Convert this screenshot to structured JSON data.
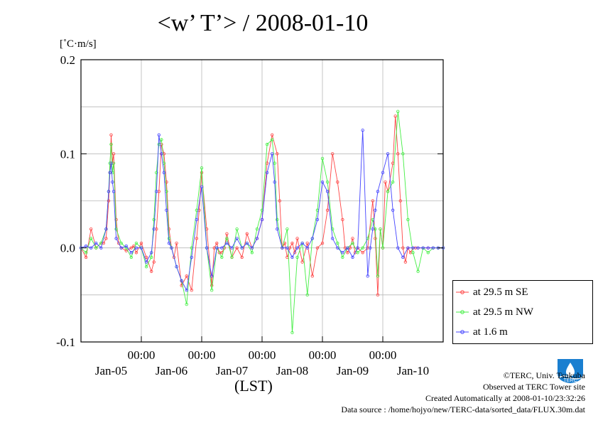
{
  "header": {
    "title": "<w’ T’> / 2008-01-10",
    "unit": "[˚C·m/s]",
    "xlabel": "(LST)"
  },
  "legend": [
    {
      "label": "at 29.5 m SE",
      "color": "#ff4444"
    },
    {
      "label": "at 29.5 m NW",
      "color": "#44ee44"
    },
    {
      "label": "at 1.6 m",
      "color": "#4444ff"
    }
  ],
  "credits": {
    "line1": "©TERC, Univ. Tsukuba",
    "line2": "Observed at TERC Tower site",
    "line3": "Created Automatically at 2008-01-10/23:32:26",
    "line4": "Data source : /home/hojyo/new/TERC-data/sorted_data/FLUX.30m.dat",
    "logo_text": "TERC"
  },
  "chart_data": {
    "type": "line",
    "ylim": [
      -0.1,
      0.2
    ],
    "yticks": [
      {
        "v": 0.2,
        "label": "0.2"
      },
      {
        "v": 0.1,
        "label": "0.1"
      },
      {
        "v": 0.0,
        "label": "0.0"
      },
      {
        "v": -0.1,
        "label": "-0.1"
      }
    ],
    "xlim": [
      0,
      144
    ],
    "xticks": [
      {
        "h": 24,
        "time": "00:00"
      },
      {
        "h": 48,
        "time": "00:00"
      },
      {
        "h": 72,
        "time": "00:00"
      },
      {
        "h": 96,
        "time": "00:00"
      },
      {
        "h": 120,
        "time": "00:00"
      }
    ],
    "dates": [
      {
        "h": 12,
        "label": "Jan-05"
      },
      {
        "h": 36,
        "label": "Jan-06"
      },
      {
        "h": 60,
        "label": "Jan-07"
      },
      {
        "h": 84,
        "label": "Jan-08"
      },
      {
        "h": 108,
        "label": "Jan-09"
      },
      {
        "h": 132,
        "label": "Jan-10"
      }
    ],
    "series": [
      {
        "name": "at 29.5 m SE",
        "color": "#ff4444",
        "x": [
          0,
          2,
          4,
          6,
          8,
          9,
          10,
          11,
          11.5,
          12,
          12.5,
          13,
          14,
          15,
          16,
          18,
          20,
          21,
          22,
          24,
          26,
          28,
          29,
          30,
          31,
          32,
          33,
          34,
          35,
          36,
          37,
          38,
          40,
          42,
          44,
          46,
          47,
          48,
          50,
          52,
          53,
          54,
          55,
          56,
          57,
          58,
          60,
          62,
          64,
          66,
          68,
          70,
          72,
          74,
          76,
          78,
          79,
          80,
          81,
          82,
          83,
          84,
          85,
          86,
          88,
          90,
          92,
          94,
          96,
          98,
          100,
          102,
          104,
          105,
          106,
          107,
          108,
          109,
          110,
          112,
          114,
          116,
          117,
          118,
          119,
          120,
          121,
          122,
          124,
          125,
          126,
          127,
          128,
          129,
          130,
          131,
          132,
          133,
          134,
          136,
          138,
          140,
          142,
          144
        ],
        "y": [
          0.0,
          -0.01,
          0.02,
          0.0,
          0.005,
          0.005,
          0.01,
          0.05,
          0.08,
          0.12,
          0.09,
          0.1,
          0.03,
          0.005,
          0.0,
          -0.003,
          0.0,
          0.002,
          -0.005,
          0.005,
          -0.01,
          -0.025,
          -0.015,
          0.02,
          0.06,
          0.11,
          0.1,
          0.07,
          0.02,
          0.0,
          -0.01,
          0.005,
          -0.04,
          -0.03,
          -0.045,
          0.01,
          0.04,
          0.08,
          0.02,
          -0.04,
          0.0,
          0.005,
          -0.005,
          -0.005,
          0.0,
          0.015,
          -0.01,
          0.0,
          -0.01,
          0.015,
          0.0,
          0.01,
          0.03,
          0.09,
          0.12,
          0.1,
          0.05,
          0.0,
          0.005,
          -0.01,
          0.0,
          0.005,
          -0.005,
          0.01,
          -0.015,
          0.005,
          -0.03,
          0.0,
          0.005,
          0.04,
          0.1,
          0.07,
          0.03,
          0.0,
          -0.005,
          0.0,
          0.01,
          -0.005,
          0.0,
          -0.005,
          0.0,
          0.05,
          0.01,
          -0.05,
          0.02,
          0.0,
          0.07,
          0.06,
          0.09,
          0.14,
          0.1,
          0.05,
          0.0,
          -0.015,
          0.0,
          -0.005,
          0.0,
          0.0,
          0.0,
          0.0,
          0.0,
          0.0,
          0.0,
          0.0
        ]
      },
      {
        "name": "at 29.5 m NW",
        "color": "#44ee44",
        "x": [
          0,
          2,
          4,
          6,
          8,
          10,
          11,
          11.5,
          12,
          12.5,
          13,
          14,
          16,
          18,
          20,
          22,
          24,
          26,
          28,
          29,
          30,
          31,
          32,
          33,
          34,
          35,
          36,
          38,
          40,
          42,
          44,
          46,
          48,
          50,
          52,
          54,
          56,
          58,
          60,
          62,
          64,
          66,
          68,
          70,
          72,
          74,
          76,
          77,
          78,
          80,
          82,
          84,
          86,
          88,
          90,
          92,
          94,
          96,
          98,
          100,
          102,
          104,
          106,
          108,
          110,
          112,
          114,
          116,
          117,
          118,
          119,
          120,
          122,
          124,
          126,
          128,
          130,
          132,
          134,
          136,
          138,
          140,
          142,
          144
        ],
        "y": [
          0.0,
          -0.005,
          0.01,
          0.0,
          0.005,
          0.02,
          0.06,
          0.09,
          0.11,
          0.08,
          0.09,
          0.02,
          0.005,
          0.0,
          -0.01,
          0.005,
          0.0,
          -0.02,
          -0.01,
          0.03,
          0.08,
          0.11,
          0.115,
          0.09,
          0.06,
          0.01,
          0.0,
          -0.02,
          -0.035,
          -0.06,
          0.0,
          0.04,
          0.085,
          0.0,
          -0.045,
          0.0,
          -0.01,
          0.01,
          -0.01,
          0.02,
          0.0,
          0.005,
          -0.005,
          0.02,
          0.04,
          0.11,
          0.115,
          0.09,
          0.03,
          0.0,
          0.02,
          -0.09,
          -0.01,
          0.005,
          -0.05,
          0.01,
          0.04,
          0.095,
          0.07,
          0.02,
          0.005,
          -0.01,
          0.0,
          0.005,
          -0.005,
          0.0,
          0.01,
          0.03,
          0.02,
          -0.03,
          0.02,
          0.0,
          0.06,
          0.07,
          0.145,
          0.1,
          0.03,
          -0.005,
          -0.025,
          0.0,
          -0.005,
          0.0,
          0.0,
          0.0
        ]
      },
      {
        "name": "at 1.6 m",
        "color": "#4444ff",
        "x": [
          0,
          2,
          4,
          6,
          8,
          10,
          11,
          11.5,
          12,
          12.5,
          13,
          14,
          16,
          18,
          20,
          22,
          24,
          26,
          28,
          29,
          30,
          31,
          32,
          33,
          34,
          35,
          36,
          38,
          40,
          42,
          44,
          46,
          48,
          50,
          52,
          54,
          56,
          58,
          60,
          62,
          64,
          66,
          68,
          70,
          72,
          74,
          76,
          77,
          78,
          80,
          82,
          84,
          86,
          88,
          90,
          92,
          94,
          96,
          98,
          100,
          102,
          104,
          106,
          108,
          110,
          112,
          114,
          115,
          116,
          117,
          118,
          120,
          122,
          124,
          126,
          128,
          130,
          132,
          134,
          136,
          138,
          140,
          142,
          144
        ],
        "y": [
          0.0,
          0.002,
          0.0,
          0.005,
          0.0,
          0.02,
          0.06,
          0.08,
          0.09,
          0.07,
          0.06,
          0.01,
          0.0,
          0.002,
          -0.005,
          0.0,
          0.0,
          -0.015,
          -0.005,
          0.02,
          0.06,
          0.12,
          0.1,
          0.08,
          0.04,
          0.005,
          0.0,
          -0.02,
          -0.035,
          -0.045,
          -0.01,
          0.03,
          0.065,
          0.0,
          -0.03,
          0.0,
          0.0,
          0.005,
          0.0,
          0.01,
          0.0,
          0.005,
          0.0,
          0.01,
          0.03,
          0.08,
          0.1,
          0.07,
          0.02,
          0.0,
          0.0,
          -0.01,
          0.0,
          0.005,
          0.0,
          0.01,
          0.03,
          0.07,
          0.06,
          0.01,
          0.0,
          -0.005,
          0.0,
          -0.01,
          0.0,
          0.125,
          -0.03,
          0.0,
          0.02,
          0.04,
          0.06,
          0.08,
          0.1,
          0.04,
          0.0,
          -0.01,
          0.0,
          0.0,
          0.0,
          0.0,
          0.0,
          0.0,
          0.0,
          0.0
        ]
      }
    ]
  }
}
